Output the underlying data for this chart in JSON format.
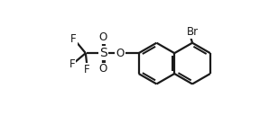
{
  "bg_color": "#ffffff",
  "line_color": "#1a1a1a",
  "line_width": 1.6,
  "font_size": 8.5,
  "figsize": [
    2.88,
    1.38
  ],
  "dpi": 100,
  "xlim": [
    0,
    8.0
  ],
  "ylim": [
    0,
    4.3
  ],
  "bl": 0.72
}
